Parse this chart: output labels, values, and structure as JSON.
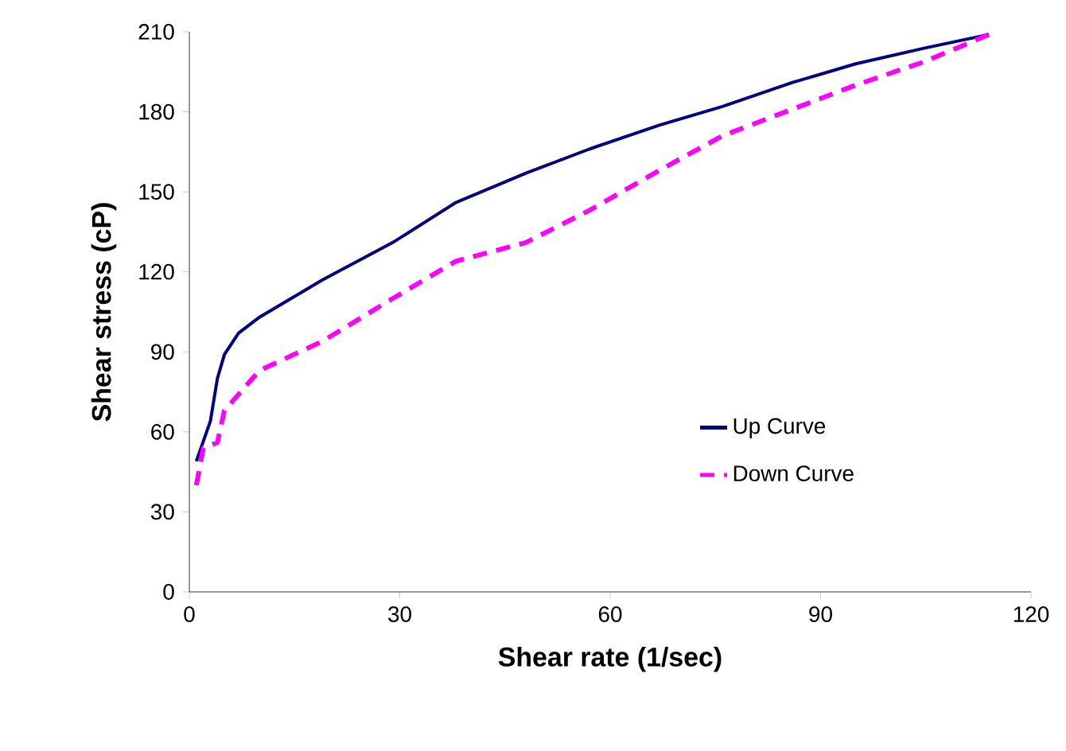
{
  "chart_data": {
    "type": "line",
    "xlabel": "Shear rate (1/sec)",
    "ylabel": "Shear stress (cP)",
    "xlim": [
      0,
      120
    ],
    "xticks": [
      0,
      30,
      60,
      90,
      120
    ],
    "ylim": [
      0,
      210
    ],
    "yticks": [
      0,
      30,
      60,
      90,
      120,
      150,
      180,
      210
    ],
    "grid": false,
    "legend": "bottom right",
    "marker": "none",
    "series": [
      {
        "name": "Up Curve",
        "color": "#000080",
        "line_style": "solid",
        "x": [
          1,
          3,
          4,
          5,
          7,
          10,
          19,
          29,
          38,
          48,
          57,
          67,
          76,
          86,
          95,
          105,
          114
        ],
        "values": [
          49,
          64,
          80,
          89,
          97,
          103,
          117,
          131,
          146,
          157,
          166,
          175,
          182,
          191,
          198,
          204,
          209
        ]
      },
      {
        "name": "Down Curve",
        "color": "#ff00ff",
        "line_style": "dashed",
        "x": [
          1,
          2,
          4,
          5,
          8,
          10,
          19,
          29,
          38,
          48,
          57,
          67,
          76,
          86,
          95,
          105,
          114
        ],
        "values": [
          40,
          54,
          56,
          68,
          77,
          83,
          94,
          110,
          124,
          131,
          143,
          158,
          171,
          181,
          190,
          199,
          209
        ]
      }
    ]
  }
}
